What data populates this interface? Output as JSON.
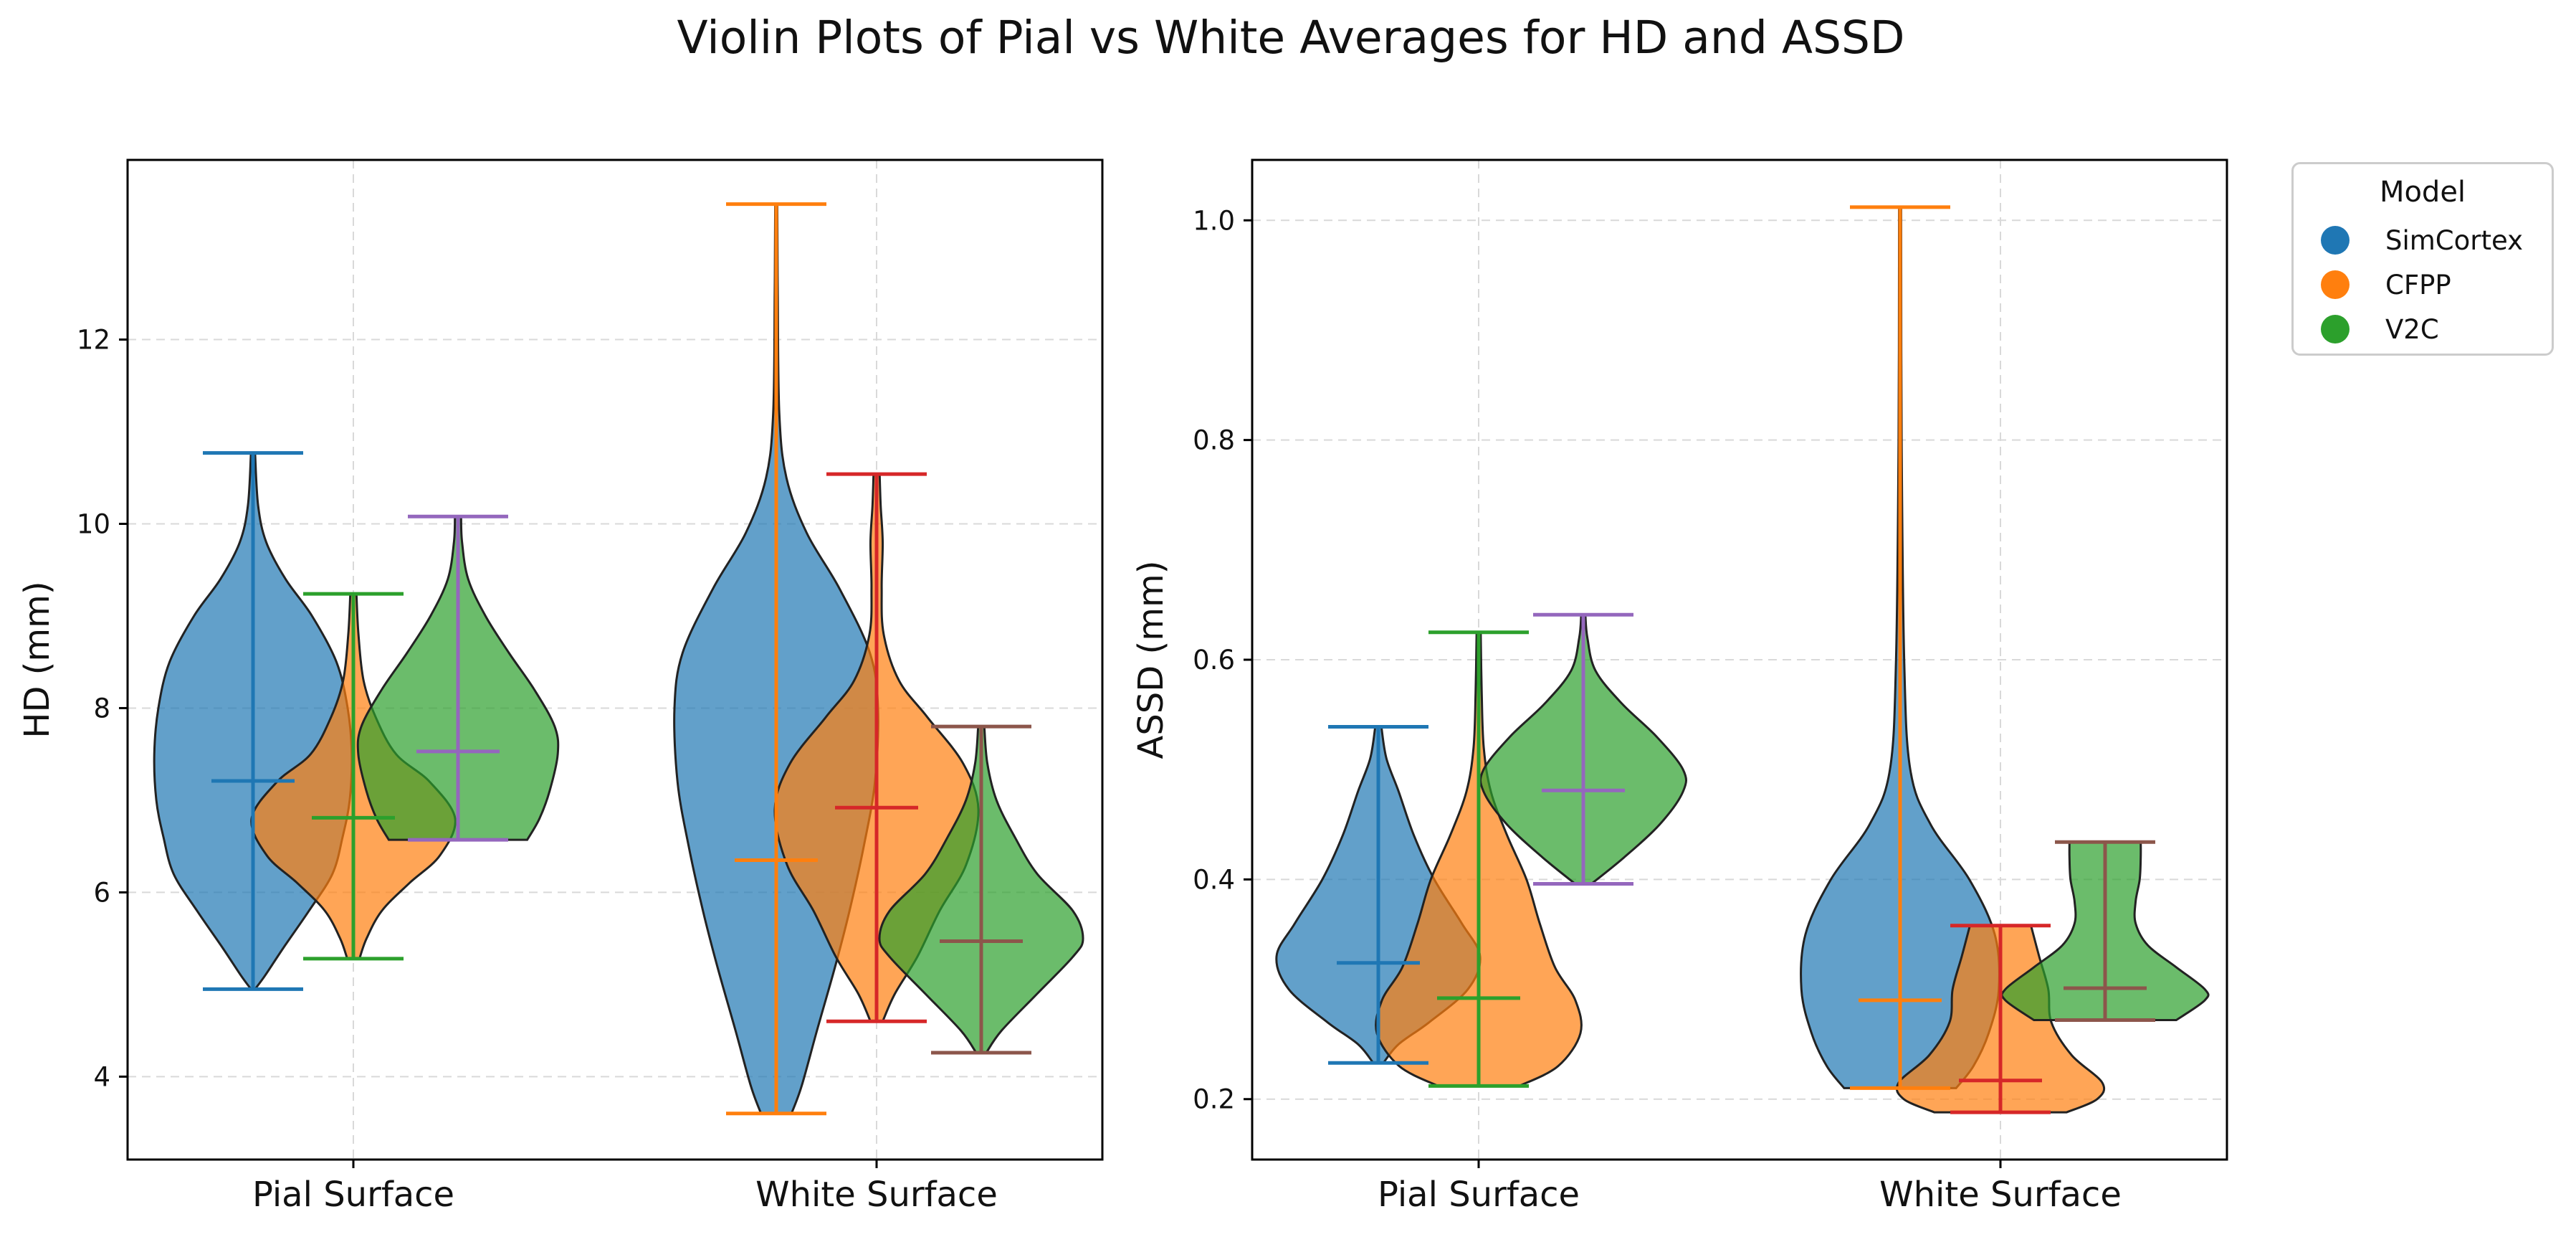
{
  "title": "Violin Plots of Pial vs White Averages for HD and ASSD",
  "legend": {
    "title": "Model",
    "items": [
      {
        "label": "SimCortex",
        "color": "#1f77b4"
      },
      {
        "label": "CFPP",
        "color": "#ff7f0e"
      },
      {
        "label": "V2C",
        "color": "#2ca02c"
      }
    ]
  },
  "chart_data": [
    {
      "type": "violin",
      "ylabel": "HD (mm)",
      "categories": [
        "Pial Surface",
        "White Surface"
      ],
      "yticks": [
        4,
        6,
        8,
        10,
        12
      ],
      "ylim": [
        3.1,
        13.95
      ],
      "grid": true,
      "series": [
        {
          "name": "SimCortex",
          "color": "#1f77b4",
          "stat_colors": [
            "#1f77b4",
            "#ff7f0e"
          ],
          "groups": [
            {
              "category": "Pial Surface",
              "min": 4.95,
              "max": 10.77,
              "mean": 7.21,
              "profile": [
                [
                  4.95,
                  0.02
                ],
                [
                  5.1,
                  0.12
                ],
                [
                  5.4,
                  0.3
                ],
                [
                  5.8,
                  0.55
                ],
                [
                  6.2,
                  0.78
                ],
                [
                  6.6,
                  0.88
                ],
                [
                  7.0,
                  0.95
                ],
                [
                  7.5,
                  0.97
                ],
                [
                  8.0,
                  0.93
                ],
                [
                  8.5,
                  0.82
                ],
                [
                  9.0,
                  0.58
                ],
                [
                  9.4,
                  0.32
                ],
                [
                  9.8,
                  0.13
                ],
                [
                  10.2,
                  0.05
                ],
                [
                  10.77,
                  0.02
                ]
              ]
            },
            {
              "category": "White Surface",
              "min": 3.6,
              "max": 13.47,
              "mean": 6.35,
              "profile": [
                [
                  3.6,
                  0.15
                ],
                [
                  3.9,
                  0.25
                ],
                [
                  4.5,
                  0.4
                ],
                [
                  5.2,
                  0.58
                ],
                [
                  5.8,
                  0.72
                ],
                [
                  6.5,
                  0.86
                ],
                [
                  7.2,
                  0.97
                ],
                [
                  8.0,
                  1.0
                ],
                [
                  8.6,
                  0.92
                ],
                [
                  9.3,
                  0.62
                ],
                [
                  9.9,
                  0.3
                ],
                [
                  10.5,
                  0.1
                ],
                [
                  11.2,
                  0.03
                ],
                [
                  12.5,
                  0.015
                ],
                [
                  13.47,
                  0.01
                ]
              ]
            }
          ]
        },
        {
          "name": "CFPP",
          "color": "#ff7f0e",
          "stat_colors": [
            "#2ca02c",
            "#d62728"
          ],
          "groups": [
            {
              "category": "Pial Surface",
              "min": 5.28,
              "max": 9.24,
              "mean": 6.81,
              "profile": [
                [
                  5.28,
                  0.06
                ],
                [
                  5.5,
                  0.13
                ],
                [
                  5.8,
                  0.28
                ],
                [
                  6.1,
                  0.55
                ],
                [
                  6.4,
                  0.85
                ],
                [
                  6.8,
                  1.0
                ],
                [
                  7.2,
                  0.75
                ],
                [
                  7.5,
                  0.42
                ],
                [
                  7.9,
                  0.22
                ],
                [
                  8.3,
                  0.1
                ],
                [
                  8.8,
                  0.05
                ],
                [
                  9.24,
                  0.03
                ]
              ]
            },
            {
              "category": "White Surface",
              "min": 4.6,
              "max": 10.54,
              "mean": 6.92,
              "profile": [
                [
                  4.6,
                  0.06
                ],
                [
                  4.9,
                  0.18
                ],
                [
                  5.3,
                  0.4
                ],
                [
                  5.8,
                  0.62
                ],
                [
                  6.3,
                  0.88
                ],
                [
                  6.9,
                  1.0
                ],
                [
                  7.4,
                  0.85
                ],
                [
                  7.9,
                  0.5
                ],
                [
                  8.3,
                  0.22
                ],
                [
                  8.8,
                  0.07
                ],
                [
                  9.3,
                  0.05
                ],
                [
                  9.8,
                  0.06
                ],
                [
                  10.2,
                  0.04
                ],
                [
                  10.54,
                  0.03
                ]
              ]
            }
          ]
        },
        {
          "name": "V2C",
          "color": "#2ca02c",
          "stat_colors": [
            "#9467bd",
            "#8c564b"
          ],
          "groups": [
            {
              "category": "Pial Surface",
              "min": 6.57,
              "max": 10.08,
              "mean": 7.53,
              "profile": [
                [
                  6.57,
                  0.68
                ],
                [
                  6.8,
                  0.8
                ],
                [
                  7.1,
                  0.9
                ],
                [
                  7.5,
                  0.98
                ],
                [
                  7.8,
                  0.95
                ],
                [
                  8.2,
                  0.75
                ],
                [
                  8.6,
                  0.5
                ],
                [
                  9.0,
                  0.27
                ],
                [
                  9.4,
                  0.1
                ],
                [
                  9.8,
                  0.04
                ],
                [
                  10.08,
                  0.03
                ]
              ]
            },
            {
              "category": "White Surface",
              "min": 4.26,
              "max": 7.8,
              "mean": 5.47,
              "profile": [
                [
                  4.26,
                  0.05
                ],
                [
                  4.5,
                  0.2
                ],
                [
                  4.9,
                  0.55
                ],
                [
                  5.3,
                  0.9
                ],
                [
                  5.5,
                  1.0
                ],
                [
                  5.8,
                  0.9
                ],
                [
                  6.2,
                  0.55
                ],
                [
                  6.6,
                  0.33
                ],
                [
                  7.0,
                  0.15
                ],
                [
                  7.4,
                  0.06
                ],
                [
                  7.8,
                  0.03
                ]
              ]
            }
          ]
        }
      ]
    },
    {
      "type": "violin",
      "ylabel": "ASSD (mm)",
      "categories": [
        "Pial Surface",
        "White Surface"
      ],
      "yticks": [
        0.2,
        0.4,
        0.6,
        0.8,
        1.0
      ],
      "ylim": [
        0.145,
        1.055
      ],
      "grid": true,
      "series": [
        {
          "name": "SimCortex",
          "color": "#1f77b4",
          "stat_colors": [
            "#1f77b4",
            "#ff7f0e"
          ],
          "groups": [
            {
              "category": "Pial Surface",
              "min": 0.233,
              "max": 0.539,
              "mean": 0.324,
              "profile": [
                [
                  0.233,
                  0.05
                ],
                [
                  0.25,
                  0.2
                ],
                [
                  0.27,
                  0.5
                ],
                [
                  0.3,
                  0.88
                ],
                [
                  0.33,
                  1.0
                ],
                [
                  0.36,
                  0.82
                ],
                [
                  0.4,
                  0.55
                ],
                [
                  0.44,
                  0.35
                ],
                [
                  0.48,
                  0.2
                ],
                [
                  0.51,
                  0.08
                ],
                [
                  0.539,
                  0.03
                ]
              ]
            },
            {
              "category": "White Surface",
              "min": 0.21,
              "max": 1.012,
              "mean": 0.29,
              "profile": [
                [
                  0.21,
                  0.55
                ],
                [
                  0.23,
                  0.72
                ],
                [
                  0.26,
                  0.87
                ],
                [
                  0.3,
                  0.97
                ],
                [
                  0.35,
                  0.93
                ],
                [
                  0.4,
                  0.68
                ],
                [
                  0.45,
                  0.3
                ],
                [
                  0.5,
                  0.1
                ],
                [
                  0.6,
                  0.04
                ],
                [
                  0.8,
                  0.015
                ],
                [
                  1.012,
                  0.01
                ]
              ]
            }
          ]
        },
        {
          "name": "CFPP",
          "color": "#ff7f0e",
          "stat_colors": [
            "#2ca02c",
            "#d62728"
          ],
          "groups": [
            {
              "category": "Pial Surface",
              "min": 0.212,
              "max": 0.625,
              "mean": 0.292,
              "profile": [
                [
                  0.212,
                  0.4
                ],
                [
                  0.23,
                  0.78
                ],
                [
                  0.26,
                  1.0
                ],
                [
                  0.29,
                  0.95
                ],
                [
                  0.32,
                  0.75
                ],
                [
                  0.36,
                  0.6
                ],
                [
                  0.4,
                  0.47
                ],
                [
                  0.44,
                  0.28
                ],
                [
                  0.48,
                  0.12
                ],
                [
                  0.52,
                  0.05
                ],
                [
                  0.57,
                  0.03
                ],
                [
                  0.625,
                  0.02
                ]
              ]
            },
            {
              "category": "White Surface",
              "min": 0.188,
              "max": 0.358,
              "mean": 0.217,
              "profile": [
                [
                  0.188,
                  0.65
                ],
                [
                  0.2,
                  0.95
                ],
                [
                  0.215,
                  1.0
                ],
                [
                  0.24,
                  0.7
                ],
                [
                  0.27,
                  0.5
                ],
                [
                  0.3,
                  0.47
                ],
                [
                  0.33,
                  0.38
                ],
                [
                  0.358,
                  0.3
                ]
              ]
            }
          ]
        },
        {
          "name": "V2C",
          "color": "#2ca02c",
          "stat_colors": [
            "#9467bd",
            "#8c564b"
          ],
          "groups": [
            {
              "category": "Pial Surface",
              "min": 0.396,
              "max": 0.641,
              "mean": 0.481,
              "profile": [
                [
                  0.396,
                  0.08
                ],
                [
                  0.42,
                  0.4
                ],
                [
                  0.45,
                  0.75
                ],
                [
                  0.48,
                  0.98
                ],
                [
                  0.5,
                  0.98
                ],
                [
                  0.53,
                  0.72
                ],
                [
                  0.56,
                  0.38
                ],
                [
                  0.59,
                  0.12
                ],
                [
                  0.62,
                  0.04
                ],
                [
                  0.641,
                  0.02
                ]
              ]
            },
            {
              "category": "White Surface",
              "min": 0.272,
              "max": 0.434,
              "mean": 0.301,
              "profile": [
                [
                  0.272,
                  0.7
                ],
                [
                  0.29,
                  0.98
                ],
                [
                  0.3,
                  0.98
                ],
                [
                  0.32,
                  0.7
                ],
                [
                  0.34,
                  0.42
                ],
                [
                  0.36,
                  0.3
                ],
                [
                  0.38,
                  0.3
                ],
                [
                  0.4,
                  0.34
                ],
                [
                  0.42,
                  0.35
                ],
                [
                  0.434,
                  0.35
                ]
              ]
            }
          ]
        }
      ]
    }
  ]
}
